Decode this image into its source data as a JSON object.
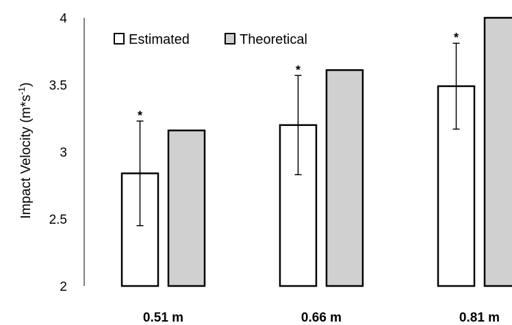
{
  "chart_data": {
    "type": "bar",
    "categories": [
      "0.51 m",
      "0.66 m",
      "0.81 m"
    ],
    "series": [
      {
        "name": "Estimated",
        "values": [
          2.84,
          3.2,
          3.49
        ],
        "error": [
          0.39,
          0.37,
          0.32
        ],
        "color": "#ffffff"
      },
      {
        "name": "Theoretical",
        "values": [
          3.16,
          3.61,
          4.0
        ],
        "color": "#d0d0d0"
      }
    ],
    "significance_marker": "*",
    "ylabel_main": "Impact Velocity (m*s",
    "ylabel_sup": "-1",
    "ylabel_close": ")",
    "xlabel": "",
    "ylim": [
      2,
      4
    ],
    "yticks": [
      "2",
      "2.5",
      "3",
      "3.5",
      "4"
    ],
    "grid": false,
    "legend_position": "top-left"
  }
}
